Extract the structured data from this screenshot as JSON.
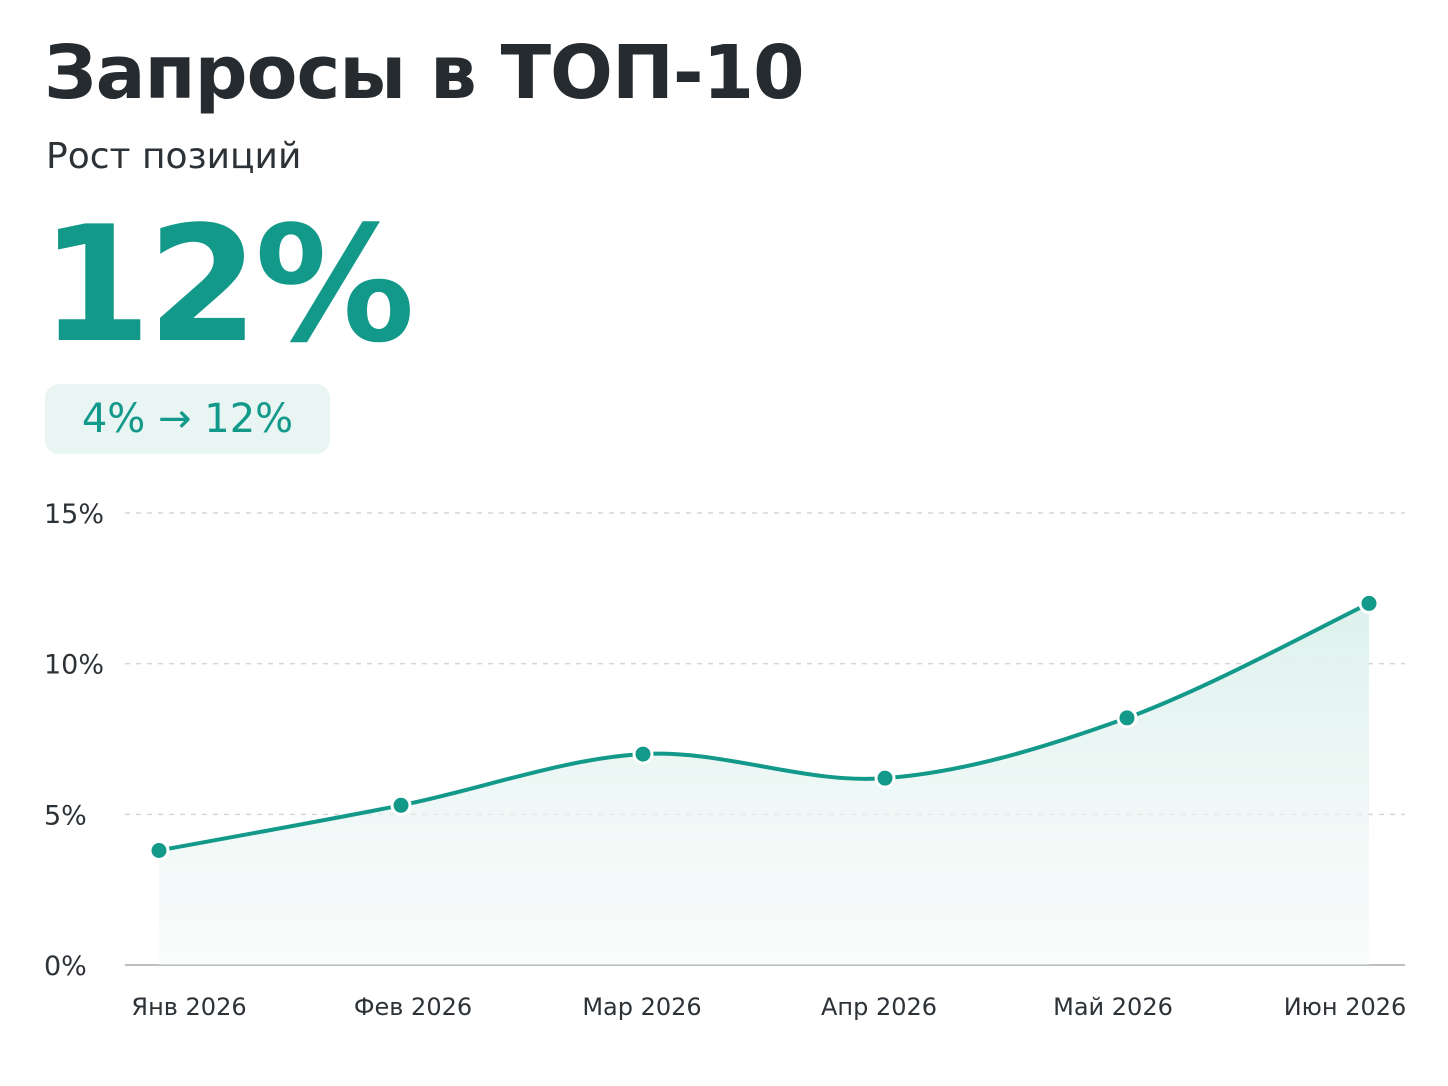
{
  "header": {
    "title": "Запросы в ТОП-10",
    "subtitle": "Рост позиций",
    "kpi_value": "12%",
    "change_label": "4% → 12%"
  },
  "colors": {
    "accent": "#13998a",
    "area_fill": "#e6f4f2",
    "grid": "#d6d6d6",
    "axis": "#bfbfbf",
    "text": "#262b30"
  },
  "chart_data": {
    "type": "area",
    "title": "Запросы в ТОП-10",
    "subtitle": "Рост позиций",
    "categories": [
      "Янв 2026",
      "Фев 2026",
      "Мар 2026",
      "Апр 2026",
      "Май 2026",
      "Июн 2026"
    ],
    "series": [
      {
        "values": [
          3.8,
          5.3,
          7.0,
          6.2,
          8.2,
          12.0
        ]
      }
    ],
    "ylim": [
      0,
      15
    ],
    "yticks": [
      0,
      5,
      10,
      15
    ],
    "ytick_labels": [
      "0%",
      "5%",
      "10%",
      "15%"
    ],
    "grid": true,
    "smooth": true
  }
}
